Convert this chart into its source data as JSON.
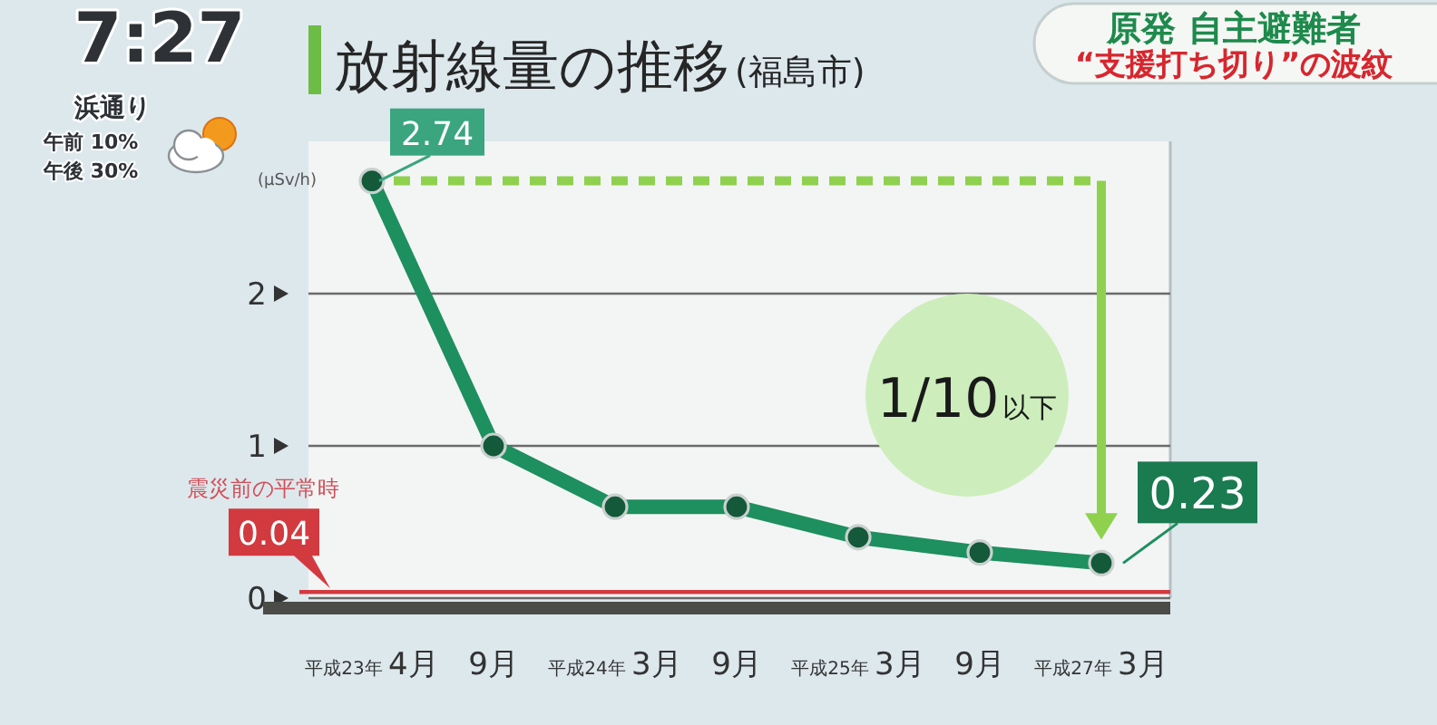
{
  "chart_data": {
    "type": "line",
    "title": "放射線量の推移",
    "subtitle": "(福島市)",
    "ylabel": "(μSv/h)",
    "categories": [
      "平成23年 4月",
      "9月",
      "平成24年 3月",
      "9月",
      "平成25年 3月",
      "9月",
      "平成27年 3月"
    ],
    "values": [
      2.74,
      1.0,
      0.6,
      0.6,
      0.4,
      0.3,
      0.23
    ],
    "color": "#1e8f5e",
    "marker": "circle",
    "value_labels": [
      "2.74",
      null,
      null,
      null,
      null,
      null,
      "0.23"
    ],
    "ylim": [
      0,
      3
    ],
    "yticks": [
      0,
      1,
      2
    ],
    "grid": "y",
    "ref_lines": [
      {
        "axis": "y",
        "value": 0.04,
        "label": "震災前の平常時",
        "color": "#d23a40"
      }
    ],
    "annotations": [
      "1/10以下",
      "0.04",
      "原発 自主避難者",
      "“支援打ち切り”の波紋",
      "7:27",
      "浜通り",
      "午前 10%",
      "午後 30%"
    ]
  }
}
